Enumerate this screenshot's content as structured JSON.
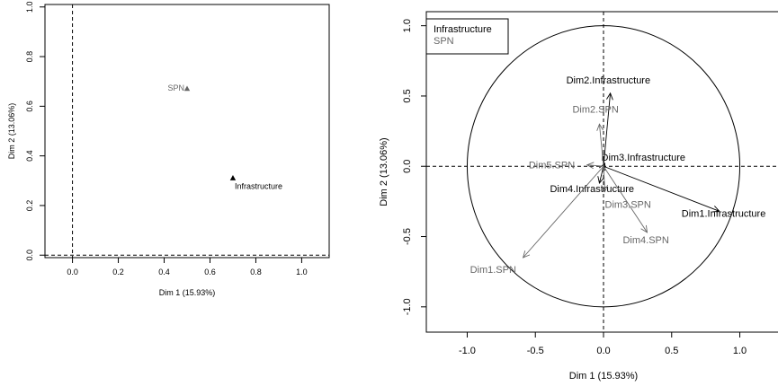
{
  "chart_data": [
    {
      "type": "scatter",
      "xlabel": "Dim 1 (15.93%)",
      "ylabel": "Dim 2 (13.06%)",
      "xlim": [
        -0.12,
        1.12
      ],
      "ylim": [
        -0.01,
        1.01
      ],
      "xticks": [
        "0.0",
        "0.2",
        "0.4",
        "0.6",
        "0.8",
        "1.0"
      ],
      "yticks": [
        "0.0",
        "0.2",
        "0.4",
        "0.6",
        "0.8",
        "1.0"
      ],
      "reference_lines": {
        "x": 0,
        "y": 0
      },
      "points": [
        {
          "label": "SPN",
          "x": 0.5,
          "y": 0.67,
          "color": "#666666"
        },
        {
          "label": "Infrastructure",
          "x": 0.7,
          "y": 0.31,
          "color": "#000000"
        }
      ]
    },
    {
      "type": "scatter",
      "subtype": "correlation-circle",
      "xlabel": "Dim 1 (15.93%)",
      "ylabel": "Dim 2 (13.06%)",
      "xlim": [
        -1.3,
        1.3
      ],
      "ylim": [
        -1.18,
        1.1
      ],
      "xticks": [
        "-1.0",
        "-0.5",
        "0.0",
        "0.5",
        "1.0"
      ],
      "yticks": [
        "-1.0",
        "-0.5",
        "0.0",
        "0.5",
        "1.0"
      ],
      "reference_lines": {
        "x": 0,
        "y": 0
      },
      "legend": {
        "position": "top-left",
        "entries": [
          {
            "label": "Infrastructure",
            "color": "#000000"
          },
          {
            "label": "SPN",
            "color": "#666666"
          }
        ]
      },
      "series": [
        {
          "name": "Infrastructure",
          "color": "#000000",
          "arrows": [
            {
              "label": "Dim1.Infrastructure",
              "x": 0.85,
              "y": -0.32
            },
            {
              "label": "Dim2.Infrastructure",
              "x": 0.05,
              "y": 0.52
            },
            {
              "label": "Dim3.Infrastructure",
              "x": 0.01,
              "y": 0.02
            },
            {
              "label": "Dim4.Infrastructure",
              "x": -0.03,
              "y": -0.12
            }
          ]
        },
        {
          "name": "SPN",
          "color": "#666666",
          "arrows": [
            {
              "label": "Dim1.SPN",
              "x": -0.59,
              "y": -0.65
            },
            {
              "label": "Dim2.SPN",
              "x": -0.03,
              "y": 0.3
            },
            {
              "label": "Dim3.SPN",
              "x": 0.01,
              "y": -0.18
            },
            {
              "label": "Dim4.SPN",
              "x": 0.32,
              "y": -0.47
            },
            {
              "label": "Dim5.SPN",
              "x": -0.12,
              "y": 0.01
            }
          ]
        }
      ]
    }
  ]
}
